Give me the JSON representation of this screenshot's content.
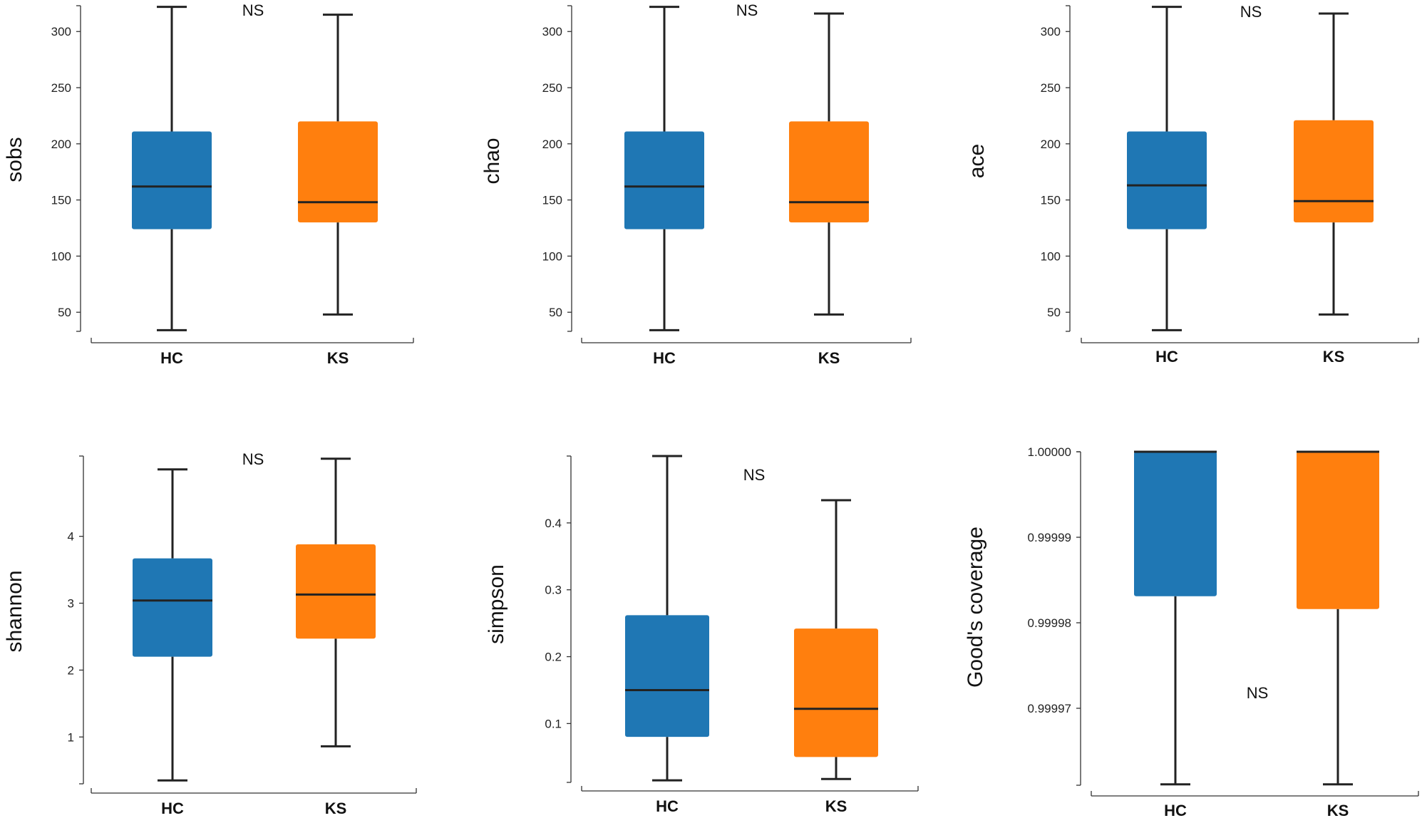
{
  "colors": {
    "HC": "#1f77b4",
    "KS": "#ff7f0e"
  },
  "chart_data": [
    {
      "type": "box",
      "ylabel": "sobs",
      "annotation": "NS",
      "categories": [
        "HC",
        "KS"
      ],
      "yticks": [
        "50",
        "100",
        "150",
        "200",
        "250",
        "300"
      ],
      "tick_values": [
        50,
        100,
        150,
        200,
        250,
        300
      ],
      "ylim": [
        33,
        323
      ],
      "boxes": [
        {
          "name": "HC",
          "min": 34,
          "q1": 124,
          "median": 162,
          "q3": 211,
          "max": 322
        },
        {
          "name": "KS",
          "min": 48,
          "q1": 130,
          "median": 148,
          "q3": 220,
          "max": 315
        }
      ]
    },
    {
      "type": "box",
      "ylabel": "chao",
      "annotation": "NS",
      "categories": [
        "HC",
        "KS"
      ],
      "yticks": [
        "50",
        "100",
        "150",
        "200",
        "250",
        "300"
      ],
      "tick_values": [
        50,
        100,
        150,
        200,
        250,
        300
      ],
      "ylim": [
        33,
        323
      ],
      "boxes": [
        {
          "name": "HC",
          "min": 34,
          "q1": 124,
          "median": 162,
          "q3": 211,
          "max": 322
        },
        {
          "name": "KS",
          "min": 48,
          "q1": 130,
          "median": 148,
          "q3": 220,
          "max": 316
        }
      ]
    },
    {
      "type": "box",
      "ylabel": "ace",
      "annotation": "NS",
      "categories": [
        "HC",
        "KS"
      ],
      "yticks": [
        "50",
        "100",
        "150",
        "200",
        "250",
        "300"
      ],
      "tick_values": [
        50,
        100,
        150,
        200,
        250,
        300
      ],
      "ylim": [
        33,
        323
      ],
      "boxes": [
        {
          "name": "HC",
          "min": 34,
          "q1": 124,
          "median": 163,
          "q3": 211,
          "max": 322
        },
        {
          "name": "KS",
          "min": 48,
          "q1": 130,
          "median": 149,
          "q3": 221,
          "max": 316
        }
      ]
    },
    {
      "type": "box",
      "ylabel": "shannon",
      "annotation": "NS",
      "categories": [
        "HC",
        "KS"
      ],
      "yticks": [
        "1",
        "2",
        "3",
        "4"
      ],
      "tick_values": [
        1,
        2,
        3,
        4
      ],
      "ylim": [
        0.3,
        5.2
      ],
      "boxes": [
        {
          "name": "HC",
          "min": 0.35,
          "q1": 2.2,
          "median": 3.04,
          "q3": 3.67,
          "max": 5.0
        },
        {
          "name": "KS",
          "min": 0.86,
          "q1": 2.47,
          "median": 3.13,
          "q3": 3.88,
          "max": 5.16
        }
      ]
    },
    {
      "type": "box",
      "ylabel": "simpson",
      "annotation": "NS",
      "categories": [
        "HC",
        "KS"
      ],
      "yticks": [
        "0.1",
        "0.2",
        "0.3",
        "0.4"
      ],
      "tick_values": [
        0.1,
        0.2,
        0.3,
        0.4
      ],
      "ylim": [
        0.012,
        0.5
      ],
      "boxes": [
        {
          "name": "HC",
          "min": 0.015,
          "q1": 0.08,
          "median": 0.15,
          "q3": 0.262,
          "max": 0.5
        },
        {
          "name": "KS",
          "min": 0.017,
          "q1": 0.05,
          "median": 0.122,
          "q3": 0.242,
          "max": 0.434
        }
      ]
    },
    {
      "type": "box",
      "ylabel": "Good's coverage",
      "annotation": "NS",
      "categories": [
        "HC",
        "KS"
      ],
      "yticks": [
        "0.99997",
        "0.99998",
        "0.99999",
        "1.00000"
      ],
      "tick_values": [
        0.99997,
        0.99998,
        0.99999,
        1.0
      ],
      "ylim": [
        0.999961,
        1.0
      ],
      "boxes": [
        {
          "name": "HC",
          "min": 0.9999611,
          "q1": 0.9999831,
          "median": 1.0,
          "q3": 1.0,
          "max": 1.0
        },
        {
          "name": "KS",
          "min": 0.9999611,
          "q1": 0.9999816,
          "median": 1.0,
          "q3": 1.0,
          "max": 1.0
        }
      ]
    }
  ]
}
